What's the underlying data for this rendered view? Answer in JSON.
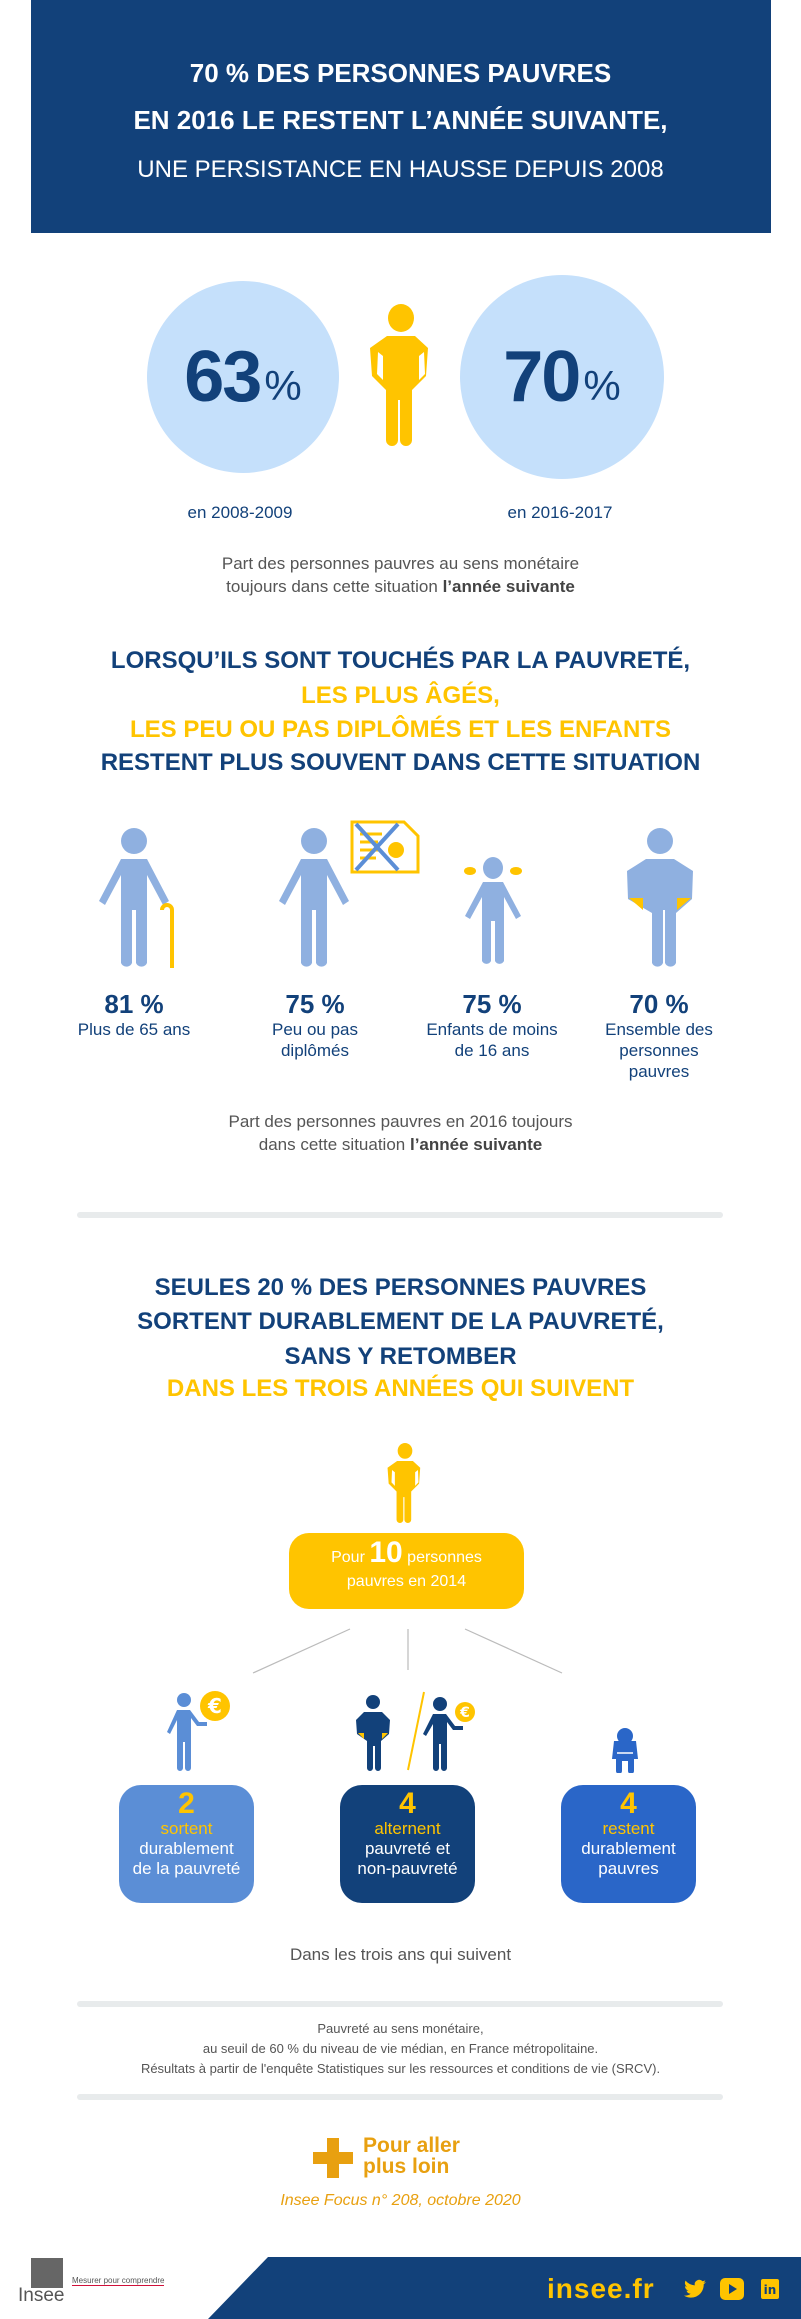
{
  "header": {
    "line1": "70 % DES PERSONNES PAUVRES",
    "line2": "EN 2016 LE RESTENT L’ANNÉE SUIVANTE,",
    "subtitle": "UNE PERSISTANCE EN HAUSSE DEPUIS 2008"
  },
  "persistence": {
    "left": {
      "value": "63",
      "unit": "%",
      "label": "en 2008-2009"
    },
    "right": {
      "value": "70",
      "unit": "%",
      "label": "en 2016-2017"
    },
    "caption_line1": "Part des personnes pauvres au sens monétaire",
    "caption_line2": "toujours dans cette situation ",
    "caption_bold": "l’année suivante"
  },
  "section2": {
    "line1": "LORSQU’ILS SONT TOUCHÉS PAR LA PAUVRETÉ,",
    "line2": "LES PLUS ÂGÉS,",
    "line3": "LES PEU OU PAS DIPLÔMÉS ET LES ENFANTS",
    "line4": "RESTENT PLUS SOUVENT DANS CETTE SITUATION",
    "stats": [
      {
        "value": "81 %",
        "label": "Plus de 65 ans"
      },
      {
        "value": "75 %",
        "label": "Peu ou pas diplômés"
      },
      {
        "value": "75 %",
        "label": "Enfants de moins de 16 ans"
      },
      {
        "value": "70 %",
        "label": "Ensemble des personnes pauvres"
      }
    ],
    "caption_line1": "Part des personnes pauvres en 2016 toujours",
    "caption_line2": "dans cette situation ",
    "caption_bold": "l’année suivante"
  },
  "section3": {
    "line1": "SEULES 20 % DES PERSONNES PAUVRES",
    "line2": "SORTENT DURABLEMENT DE LA PAUVRETÉ,",
    "line3": "SANS Y RETOMBER",
    "line4": "DANS LES TROIS ANNÉES QUI SUIVENT",
    "root": {
      "pre": "Pour",
      "num": "10",
      "post": "personnes",
      "line2": "pauvres en 2014"
    },
    "outcomes": [
      {
        "num": "2",
        "verb": "sortent",
        "rest1": "durablement",
        "rest2": "de la pauvreté",
        "color": "#5b8ed6"
      },
      {
        "num": "4",
        "verb": "alternent",
        "rest1": "pauvreté et",
        "rest2": "non-pauvreté",
        "color": "#12417a"
      },
      {
        "num": "4",
        "verb": "restent",
        "rest1": "durablement",
        "rest2": "pauvres",
        "color": "#2a66c8"
      }
    ],
    "footnote": "Dans les trois ans qui suivent"
  },
  "notes": [
    "Pauvreté au sens monétaire,",
    "au seuil de 60 % du niveau de vie médian, en France métropolitaine.",
    "Résultats à partir de l'enquête Statistiques sur les ressources et conditions de vie (SRCV)."
  ],
  "more": {
    "line1": "Pour aller",
    "line2": "plus loin",
    "citation": "Insee Focus n° 208, octobre 2020"
  },
  "footer": {
    "logo_text": "Insee",
    "tagline": "Mesurer pour comprendre",
    "site": "insee.fr",
    "social": [
      "twitter-icon",
      "youtube-icon",
      "linkedin-icon"
    ]
  },
  "colors": {
    "dark_blue": "#12417a",
    "yellow": "#ffc400",
    "light_blue": "#c5e0fb",
    "figure_blue": "#8fb0e0",
    "orange": "#e8a010"
  }
}
